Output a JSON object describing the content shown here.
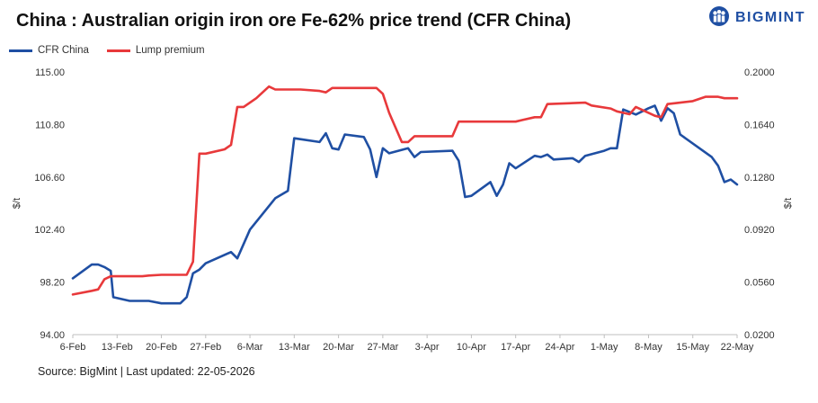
{
  "header": {
    "title": "China : Australian origin iron ore Fe-62% price trend (CFR China)",
    "brand": "BIGMINT",
    "brand_icon": "people-logo-icon"
  },
  "footer": {
    "source": "Source: BigMint | Last updated: 22-05-2026"
  },
  "colors": {
    "cfr": "#1f4fa3",
    "lump": "#e8393b",
    "brand": "#1f4fa3"
  },
  "chart_data": {
    "type": "line",
    "title": "China : Australian origin iron ore Fe-62% price trend (CFR China)",
    "x_tick_labels": [
      "6-Feb",
      "13-Feb",
      "20-Feb",
      "27-Feb",
      "6-Mar",
      "13-Mar",
      "20-Mar",
      "27-Mar",
      "3-Apr",
      "10-Apr",
      "17-Apr",
      "24-Apr",
      "1-May",
      "8-May",
      "15-May",
      "22-May"
    ],
    "x_unit": "days since 6-Feb",
    "xlim": [
      0,
      105
    ],
    "y_left": {
      "label": "$/t",
      "ylim": [
        94.0,
        115.0
      ],
      "ticks": [
        "94.00",
        "98.20",
        "102.40",
        "106.60",
        "110.80",
        "115.00"
      ]
    },
    "y_right": {
      "label": "$/t",
      "ylim": [
        0.02,
        0.2
      ],
      "ticks": [
        "0.0200",
        "0.0560",
        "0.0920",
        "0.1280",
        "0.1640",
        "0.2000"
      ]
    },
    "grid": false,
    "legend": "top-left",
    "series": [
      {
        "name": "CFR China",
        "axis": "left",
        "color": "#1f4fa3",
        "points": [
          [
            0,
            98.5
          ],
          [
            3,
            99.6
          ],
          [
            4,
            99.6
          ],
          [
            5,
            99.4
          ],
          [
            6,
            99.1
          ],
          [
            6.4,
            97.0
          ],
          [
            9,
            96.7
          ],
          [
            12,
            96.7
          ],
          [
            14,
            96.5
          ],
          [
            17,
            96.5
          ],
          [
            18,
            97.0
          ],
          [
            19,
            98.9
          ],
          [
            20,
            99.2
          ],
          [
            21,
            99.7
          ],
          [
            25,
            100.6
          ],
          [
            26,
            100.1
          ],
          [
            28,
            102.4
          ],
          [
            32,
            104.9
          ],
          [
            34,
            105.5
          ],
          [
            35,
            109.7
          ],
          [
            39,
            109.4
          ],
          [
            40,
            110.1
          ],
          [
            41,
            108.9
          ],
          [
            42,
            108.8
          ],
          [
            43,
            110.0
          ],
          [
            46,
            109.8
          ],
          [
            47,
            108.8
          ],
          [
            48,
            106.6
          ],
          [
            49,
            108.9
          ],
          [
            50,
            108.5
          ],
          [
            53,
            108.9
          ],
          [
            54,
            108.2
          ],
          [
            55,
            108.6
          ],
          [
            60,
            108.7
          ],
          [
            61,
            107.9
          ],
          [
            62,
            105.0
          ],
          [
            63,
            105.1
          ],
          [
            66,
            106.2
          ],
          [
            67,
            105.1
          ],
          [
            68,
            106.0
          ],
          [
            69,
            107.7
          ],
          [
            70,
            107.3
          ],
          [
            73,
            108.3
          ],
          [
            74,
            108.2
          ],
          [
            75,
            108.4
          ],
          [
            76,
            108.0
          ],
          [
            79,
            108.1
          ],
          [
            80,
            107.8
          ],
          [
            81,
            108.3
          ],
          [
            84,
            108.7
          ],
          [
            85,
            108.9
          ],
          [
            86,
            108.9
          ],
          [
            87,
            112.0
          ],
          [
            89,
            111.6
          ],
          [
            91,
            112.1
          ],
          [
            92,
            112.3
          ],
          [
            93,
            111.1
          ],
          [
            94,
            112.1
          ],
          [
            95,
            111.7
          ],
          [
            96,
            110.0
          ],
          [
            101,
            108.2
          ],
          [
            102,
            107.5
          ],
          [
            103,
            106.2
          ],
          [
            104,
            106.4
          ],
          [
            105,
            106.0
          ]
        ]
      },
      {
        "name": "Lump premium",
        "axis": "right",
        "color": "#e8393b",
        "points": [
          [
            0,
            0.0475
          ],
          [
            3,
            0.05
          ],
          [
            4,
            0.051
          ],
          [
            5,
            0.058
          ],
          [
            6,
            0.06
          ],
          [
            11,
            0.06
          ],
          [
            12,
            0.0605
          ],
          [
            14,
            0.061
          ],
          [
            18,
            0.061
          ],
          [
            19,
            0.07
          ],
          [
            20,
            0.144
          ],
          [
            21,
            0.144
          ],
          [
            24,
            0.147
          ],
          [
            25,
            0.15
          ],
          [
            26,
            0.176
          ],
          [
            27,
            0.176
          ],
          [
            29,
            0.182
          ],
          [
            31,
            0.19
          ],
          [
            32,
            0.188
          ],
          [
            36,
            0.188
          ],
          [
            39,
            0.187
          ],
          [
            40,
            0.186
          ],
          [
            41,
            0.189
          ],
          [
            48,
            0.189
          ],
          [
            49,
            0.185
          ],
          [
            50,
            0.172
          ],
          [
            52,
            0.152
          ],
          [
            53,
            0.152
          ],
          [
            54,
            0.156
          ],
          [
            60,
            0.156
          ],
          [
            61,
            0.166
          ],
          [
            70,
            0.166
          ],
          [
            71,
            0.167
          ],
          [
            73,
            0.169
          ],
          [
            74,
            0.169
          ],
          [
            75,
            0.178
          ],
          [
            81,
            0.179
          ],
          [
            82,
            0.177
          ],
          [
            85,
            0.175
          ],
          [
            86,
            0.173
          ],
          [
            87,
            0.172
          ],
          [
            88,
            0.171
          ],
          [
            89,
            0.176
          ],
          [
            92,
            0.17
          ],
          [
            93,
            0.169
          ],
          [
            94,
            0.178
          ],
          [
            96,
            0.179
          ],
          [
            98,
            0.18
          ],
          [
            100,
            0.183
          ],
          [
            101,
            0.183
          ],
          [
            102,
            0.183
          ],
          [
            103,
            0.182
          ],
          [
            105,
            0.182
          ]
        ]
      }
    ]
  }
}
